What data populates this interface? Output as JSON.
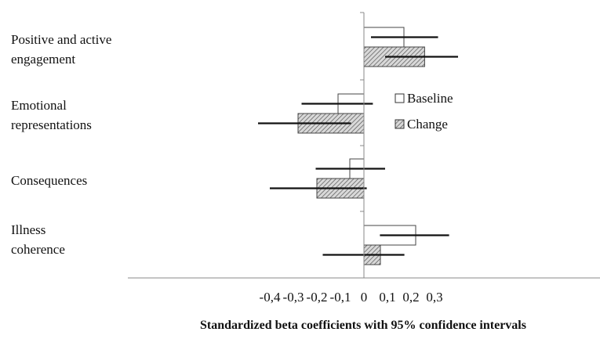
{
  "chart_data": {
    "type": "bar",
    "orientation": "horizontal",
    "title": "",
    "xlabel": "Standardized beta coefficients with 95% confidence intervals",
    "ylabel": "",
    "xlim": [
      -0.4,
      0.4
    ],
    "xticks": [
      "-0,4",
      "-0,3",
      "-0,2",
      "-0,1",
      "0",
      "0,1",
      "0,2",
      "0,3"
    ],
    "xtick_values": [
      -0.4,
      -0.3,
      -0.2,
      -0.1,
      0,
      0.1,
      0.2,
      0.3
    ],
    "grid": false,
    "legend_position": "center-right",
    "categories": [
      [
        "Positive and active",
        "engagement"
      ],
      [
        "Emotional",
        "representations"
      ],
      [
        "Consequences"
      ],
      [
        "Illness",
        "coherence"
      ]
    ],
    "series": [
      {
        "name": "Baseline",
        "fill": "#ffffff",
        "pattern": "none",
        "values": [
          0.17,
          -0.11,
          -0.06,
          0.22
        ],
        "ci_lower": [
          0.03,
          -0.265,
          -0.205,
          0.068
        ],
        "ci_upper": [
          0.315,
          0.038,
          0.09,
          0.362
        ]
      },
      {
        "name": "Change",
        "fill": "#cfcfcf",
        "pattern": "diagonal-hatch",
        "values": [
          0.258,
          -0.28,
          -0.2,
          0.07
        ],
        "ci_lower": [
          0.09,
          -0.45,
          -0.4,
          -0.175
        ],
        "ci_upper": [
          0.4,
          -0.055,
          0.012,
          0.172
        ]
      }
    ]
  }
}
